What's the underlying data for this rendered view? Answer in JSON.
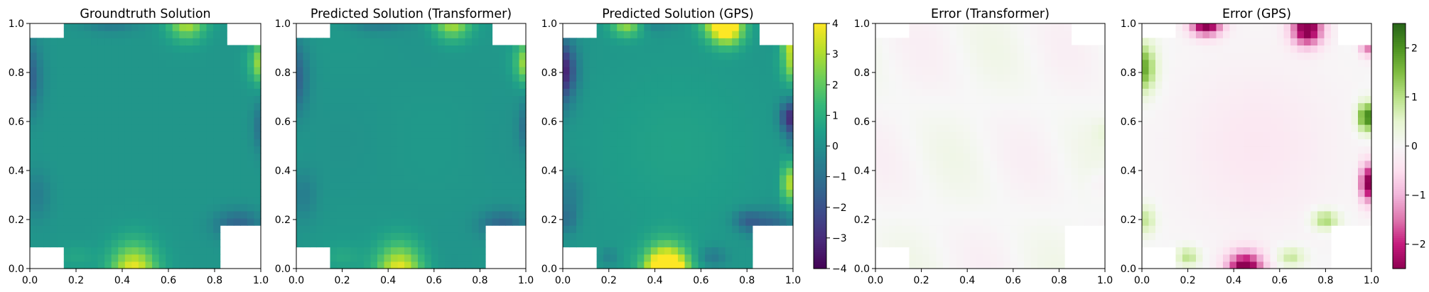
{
  "chart_data": [
    {
      "type": "heatmap",
      "title": "Groundtruth Solution",
      "field": "solution",
      "variant": "truth",
      "xlim": [
        0,
        1
      ],
      "ylim": [
        0,
        1
      ],
      "xticks": [
        "0.0",
        "0.2",
        "0.4",
        "0.6",
        "0.8",
        "1.0"
      ],
      "yticks": [
        "0.0",
        "0.2",
        "0.4",
        "0.6",
        "0.8",
        "1.0"
      ],
      "colormap": "viridis",
      "clim": [
        -4,
        4
      ],
      "masked_corners": {
        "bottom_left": [
          0.15,
          0.1
        ],
        "top_left": [
          0.15,
          0.05
        ],
        "top_right": [
          0.15,
          0.1
        ],
        "bottom_right": [
          0.19,
          0.17
        ]
      }
    },
    {
      "type": "heatmap",
      "title": "Predicted Solution (Transformer)",
      "field": "solution",
      "variant": "transformer",
      "xlim": [
        0,
        1
      ],
      "ylim": [
        0,
        1
      ],
      "xticks": [
        "0.0",
        "0.2",
        "0.4",
        "0.6",
        "0.8",
        "1.0"
      ],
      "yticks": [
        "0.0",
        "0.2",
        "0.4",
        "0.6",
        "0.8",
        "1.0"
      ],
      "colormap": "viridis",
      "clim": [
        -4,
        4
      ],
      "masked_corners": {
        "bottom_left": [
          0.15,
          0.1
        ],
        "top_left": [
          0.15,
          0.05
        ],
        "top_right": [
          0.15,
          0.1
        ],
        "bottom_right": [
          0.19,
          0.17
        ]
      }
    },
    {
      "type": "heatmap",
      "title": "Predicted Solution (GPS)",
      "field": "solution",
      "variant": "gps",
      "xlim": [
        0,
        1
      ],
      "ylim": [
        0,
        1
      ],
      "xticks": [
        "0.0",
        "0.2",
        "0.4",
        "0.6",
        "0.8",
        "1.0"
      ],
      "yticks": [
        "0.0",
        "0.2",
        "0.4",
        "0.6",
        "0.8",
        "1.0"
      ],
      "colormap": "viridis",
      "clim": [
        -4,
        4
      ],
      "colorbar_ticks": [
        "4",
        "3",
        "2",
        "1",
        "0",
        "−1",
        "−2",
        "−3",
        "−4"
      ],
      "masked_corners": {
        "bottom_left": [
          0.15,
          0.1
        ],
        "top_left": [
          0.15,
          0.05
        ],
        "top_right": [
          0.15,
          0.1
        ],
        "bottom_right": [
          0.19,
          0.17
        ]
      }
    },
    {
      "type": "heatmap",
      "title": "Error (Transformer)",
      "field": "error",
      "variant": "transformer",
      "xlim": [
        0,
        1
      ],
      "ylim": [
        0,
        1
      ],
      "xticks": [
        "0.0",
        "0.2",
        "0.4",
        "0.6",
        "0.8",
        "1.0"
      ],
      "yticks": [
        "0.0",
        "0.2",
        "0.4",
        "0.6",
        "0.8",
        "1.0"
      ],
      "colormap": "PiYG",
      "clim": [
        -2.5,
        2.5
      ],
      "masked_corners": {
        "bottom_left": [
          0.15,
          0.1
        ],
        "top_left": [
          0.15,
          0.05
        ],
        "top_right": [
          0.15,
          0.1
        ],
        "bottom_right": [
          0.19,
          0.17
        ]
      }
    },
    {
      "type": "heatmap",
      "title": "Error (GPS)",
      "field": "error",
      "variant": "gps",
      "xlim": [
        0,
        1
      ],
      "ylim": [
        0,
        1
      ],
      "xticks": [
        "0.0",
        "0.2",
        "0.4",
        "0.6",
        "0.8",
        "1.0"
      ],
      "yticks": [
        "0.0",
        "0.2",
        "0.4",
        "0.6",
        "0.8",
        "1.0"
      ],
      "colormap": "PiYG",
      "clim": [
        -2.5,
        2.5
      ],
      "colorbar_ticks": [
        "2",
        "1",
        "0",
        "−1",
        "−2"
      ],
      "masked_corners": {
        "bottom_left": [
          0.15,
          0.1
        ],
        "top_left": [
          0.15,
          0.05
        ],
        "top_right": [
          0.15,
          0.1
        ],
        "bottom_right": [
          0.19,
          0.17
        ]
      }
    }
  ],
  "colorbars": [
    {
      "colormap": "viridis",
      "range": [
        -4,
        4
      ],
      "ticks": [
        4,
        3,
        2,
        1,
        0,
        -1,
        -2,
        -3,
        -4
      ]
    },
    {
      "colormap": "PiYG",
      "range": [
        -2.5,
        2.5
      ],
      "ticks": [
        2,
        1,
        0,
        -1,
        -2
      ]
    }
  ]
}
